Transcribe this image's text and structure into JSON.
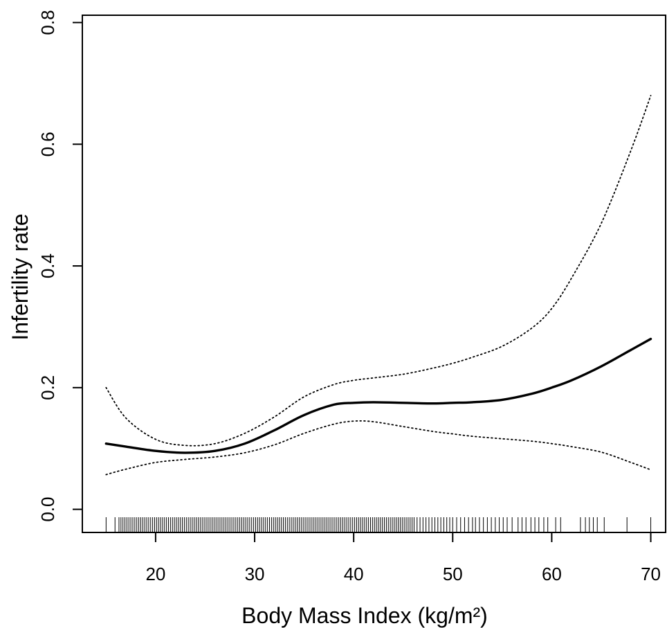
{
  "chart_data": {
    "type": "line",
    "title": "",
    "xlabel": "Body Mass Index (kg/m²)",
    "ylabel": "Infertility rate",
    "xlim": [
      12.6,
      71.5
    ],
    "ylim": [
      -0.038,
      0.812
    ],
    "x_ticks": [
      20,
      30,
      40,
      50,
      60,
      70
    ],
    "y_ticks": [
      0.0,
      0.2,
      0.4,
      0.6,
      0.8
    ],
    "x_tick_labels": [
      "20",
      "30",
      "40",
      "50",
      "60",
      "70"
    ],
    "y_tick_labels": [
      "0.0",
      "0.2",
      "0.4",
      "0.6",
      "0.8"
    ],
    "grid": false,
    "legend": "none",
    "series": [
      {
        "role": "estimate",
        "style": "solid-thick",
        "x": [
          15,
          17,
          20,
          23,
          26,
          29,
          32,
          35,
          38,
          40,
          42,
          45,
          48,
          50,
          52,
          55,
          58,
          60,
          62,
          65,
          68,
          70
        ],
        "y": [
          0.108,
          0.103,
          0.096,
          0.093,
          0.096,
          0.108,
          0.13,
          0.155,
          0.172,
          0.175,
          0.176,
          0.175,
          0.174,
          0.175,
          0.176,
          0.18,
          0.19,
          0.2,
          0.212,
          0.235,
          0.262,
          0.28
        ]
      },
      {
        "role": "upper-ci",
        "style": "dotted",
        "x": [
          15,
          17,
          20,
          23,
          26,
          29,
          32,
          35,
          38,
          40,
          42,
          45,
          48,
          50,
          52,
          55,
          58,
          60,
          62,
          65,
          68,
          70
        ],
        "y": [
          0.2,
          0.15,
          0.115,
          0.105,
          0.108,
          0.125,
          0.152,
          0.185,
          0.205,
          0.212,
          0.216,
          0.222,
          0.232,
          0.24,
          0.25,
          0.268,
          0.298,
          0.33,
          0.38,
          0.47,
          0.59,
          0.68
        ]
      },
      {
        "role": "lower-ci",
        "style": "dotted",
        "x": [
          15,
          17,
          20,
          23,
          26,
          29,
          32,
          35,
          38,
          40,
          42,
          45,
          48,
          50,
          52,
          55,
          58,
          60,
          62,
          65,
          68,
          70
        ],
        "y": [
          0.057,
          0.066,
          0.077,
          0.082,
          0.086,
          0.093,
          0.106,
          0.125,
          0.14,
          0.145,
          0.144,
          0.136,
          0.128,
          0.124,
          0.12,
          0.116,
          0.112,
          0.108,
          0.103,
          0.094,
          0.077,
          0.065
        ]
      }
    ],
    "rug": [
      15.0,
      15.9,
      16.3,
      16.5,
      16.7,
      16.9,
      17.1,
      17.3,
      17.5,
      17.7,
      17.9,
      18.1,
      18.3,
      18.5,
      18.7,
      18.9,
      19.1,
      19.3,
      19.5,
      19.7,
      19.9,
      20.1,
      20.3,
      20.5,
      20.7,
      20.9,
      21.1,
      21.3,
      21.5,
      21.7,
      21.9,
      22.1,
      22.3,
      22.5,
      22.7,
      22.9,
      23.1,
      23.3,
      23.5,
      23.7,
      23.9,
      24.1,
      24.3,
      24.5,
      24.7,
      24.9,
      25.1,
      25.3,
      25.5,
      25.7,
      25.9,
      26.1,
      26.3,
      26.5,
      26.7,
      26.9,
      27.1,
      27.3,
      27.5,
      27.7,
      27.9,
      28.1,
      28.3,
      28.5,
      28.7,
      28.9,
      29.1,
      29.3,
      29.5,
      29.7,
      29.9,
      30.1,
      30.3,
      30.5,
      30.7,
      30.9,
      31.1,
      31.3,
      31.5,
      31.7,
      31.9,
      32.1,
      32.3,
      32.5,
      32.7,
      32.9,
      33.1,
      33.3,
      33.5,
      33.7,
      33.9,
      34.1,
      34.3,
      34.5,
      34.7,
      34.9,
      35.1,
      35.3,
      35.5,
      35.7,
      35.9,
      36.1,
      36.3,
      36.5,
      36.7,
      36.9,
      37.1,
      37.3,
      37.5,
      37.7,
      37.9,
      38.1,
      38.3,
      38.5,
      38.7,
      38.9,
      39.1,
      39.3,
      39.5,
      39.7,
      39.9,
      40.1,
      40.3,
      40.5,
      40.7,
      40.9,
      41.1,
      41.3,
      41.5,
      41.7,
      41.9,
      42.1,
      42.3,
      42.5,
      42.7,
      42.9,
      43.1,
      43.3,
      43.5,
      43.7,
      43.9,
      44.1,
      44.3,
      44.5,
      44.7,
      44.9,
      45.1,
      45.3,
      45.5,
      45.7,
      45.9,
      46.1,
      46.4,
      46.7,
      47.0,
      47.3,
      47.6,
      47.9,
      48.2,
      48.5,
      48.8,
      49.1,
      49.4,
      49.7,
      50.0,
      50.4,
      50.8,
      51.2,
      51.6,
      52.0,
      52.3,
      52.7,
      53.1,
      53.5,
      53.9,
      54.3,
      54.7,
      55.1,
      55.5,
      56.0,
      56.6,
      57.0,
      57.4,
      57.9,
      58.3,
      58.7,
      59.2,
      59.6,
      60.4,
      60.9,
      62.9,
      63.4,
      63.8,
      64.2,
      64.6,
      65.3,
      67.6,
      70.0
    ]
  }
}
